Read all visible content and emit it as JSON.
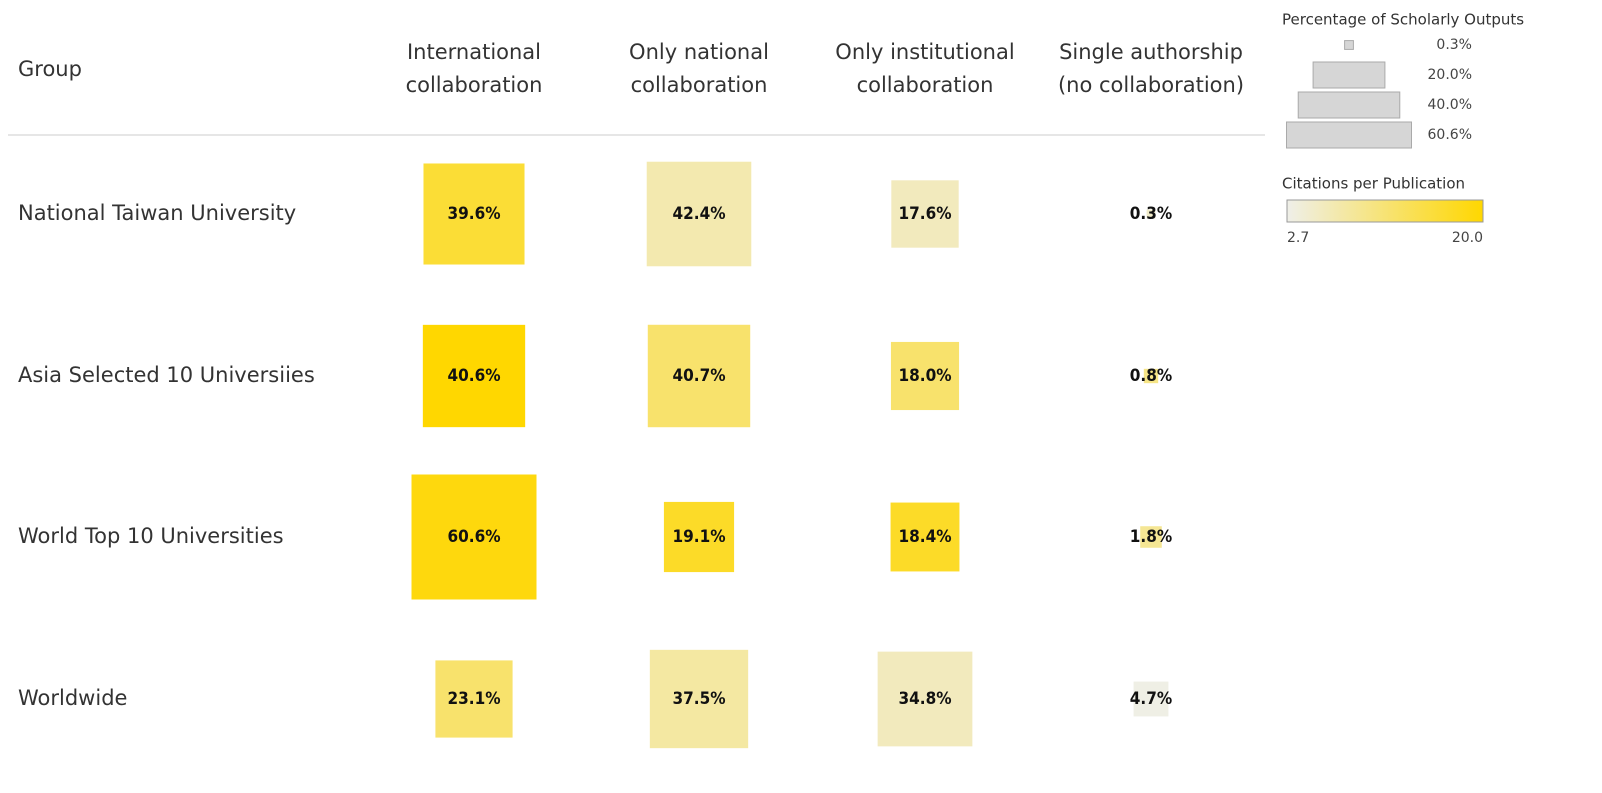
{
  "chart_data": {
    "type": "heatmap",
    "row_header": "Group",
    "rows": [
      "National Taiwan University",
      "Asia Selected 10 Universiies",
      "World Top 10 Universities",
      "Worldwide"
    ],
    "columns": [
      [
        "International",
        "collaboration"
      ],
      [
        "Only national",
        "collaboration"
      ],
      [
        "Only institutional",
        "collaboration"
      ],
      [
        "Single authorship",
        "(no collaboration)"
      ]
    ],
    "values": [
      [
        39.6,
        42.4,
        17.6,
        0.3
      ],
      [
        40.6,
        40.7,
        18.0,
        0.8
      ],
      [
        60.6,
        19.1,
        18.4,
        1.8
      ],
      [
        23.1,
        37.5,
        34.8,
        4.7
      ]
    ],
    "value_labels": [
      [
        "39.6%",
        "42.4%",
        "17.6%",
        "0.3%"
      ],
      [
        "40.6%",
        "40.7%",
        "18.0%",
        "0.8%"
      ],
      [
        "60.6%",
        "19.1%",
        "18.4%",
        "1.8%"
      ],
      [
        "23.1%",
        "37.5%",
        "34.8%",
        "4.7%"
      ]
    ],
    "citations": [
      [
        16,
        7,
        6,
        5
      ],
      [
        20,
        12,
        12,
        10
      ],
      [
        19,
        17,
        17,
        9
      ],
      [
        12,
        8,
        6,
        3
      ]
    ],
    "size_legend_title": "Percentage of Scholarly Outputs",
    "size_legend": [
      {
        "value": 0.3,
        "label": "0.3%"
      },
      {
        "value": 20,
        "label": "20.0%"
      },
      {
        "value": 40,
        "label": "40.0%"
      },
      {
        "value": 60.6,
        "label": "60.6%"
      }
    ],
    "color_legend_title": "Citations per Publication",
    "clim": [
      2.7,
      20
    ],
    "cticks": [
      2.7,
      {
        "value": 20,
        "label": "20.0"
      }
    ],
    "colors": [
      "#efefe9",
      "#ffd700"
    ]
  }
}
